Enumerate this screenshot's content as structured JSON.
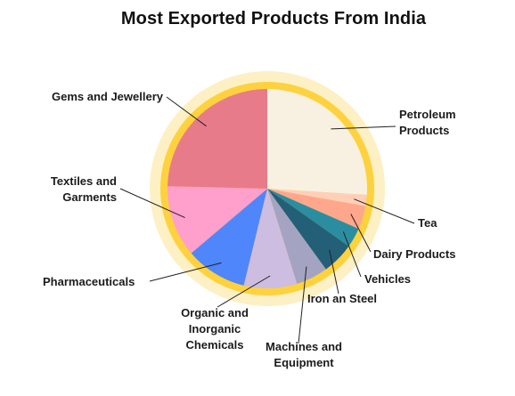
{
  "chart_data": {
    "type": "pie",
    "title": "Most Exported Products From India",
    "slices": [
      {
        "label": "Petroleum Products",
        "value": 26.0,
        "color": "#f8f1e1"
      },
      {
        "label": "Tea",
        "value": 1.8,
        "color": "#ffcfb8"
      },
      {
        "label": "Dairy Products",
        "value": 3.8,
        "color": "#ffa78c"
      },
      {
        "label": "Vehicles",
        "value": 3.2,
        "color": "#2a8ea0"
      },
      {
        "label": "Iron an Steel",
        "value": 5.2,
        "color": "#245f78"
      },
      {
        "label": "Machines and Equipment",
        "value": 5.2,
        "color": "#a4a4c2"
      },
      {
        "label": "Organic and Inorganic Chemicals",
        "value": 8.6,
        "color": "#cdbde0"
      },
      {
        "label": "Pharmaceuticals",
        "value": 10.0,
        "color": "#4f86fb"
      },
      {
        "label": "Textiles and Garments",
        "value": 11.6,
        "color": "#ff9fcb"
      },
      {
        "label": "Gems and Jewellery",
        "value": 24.6,
        "color": "#e87b89"
      }
    ],
    "start": "12 o'clock, clockwise",
    "ring_colors": {
      "inner": "#fdd23e",
      "outer": "#fdf0c4"
    }
  }
}
